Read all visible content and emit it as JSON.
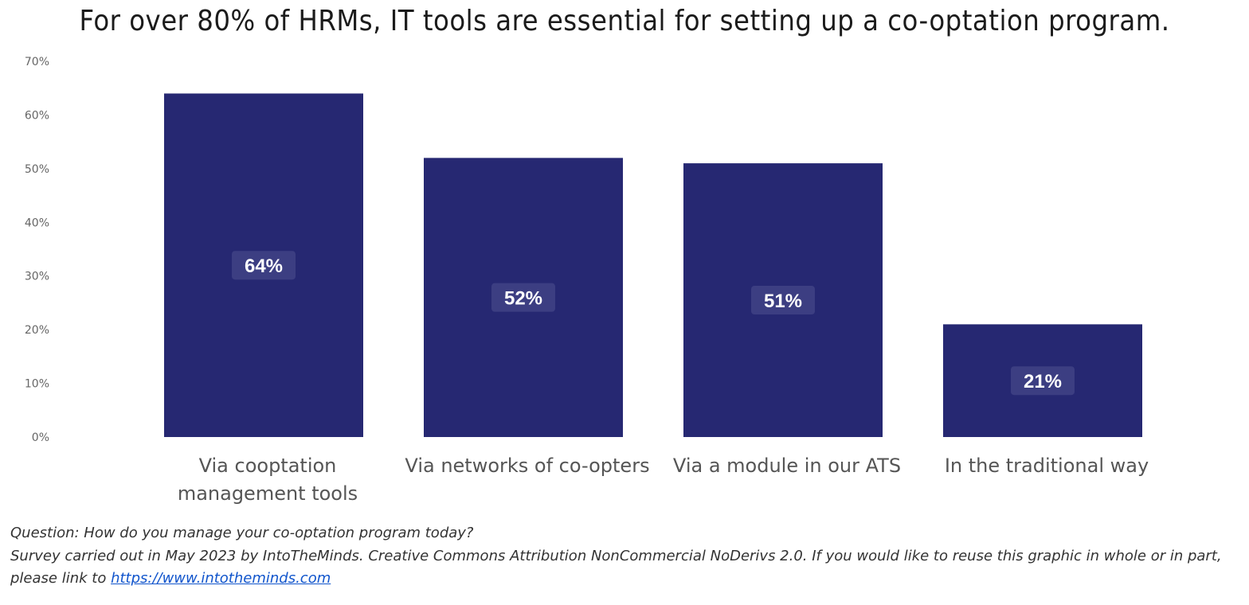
{
  "chart_data": {
    "type": "bar",
    "title": "For over 80% of HRMs, IT tools are essential for setting up a co-optation program.",
    "categories": [
      [
        "Via cooptation",
        "management tools"
      ],
      [
        "Via networks of co-opters"
      ],
      [
        "Via a module in our ATS"
      ],
      [
        "In the traditional way"
      ]
    ],
    "values": [
      64,
      52,
      51,
      21
    ],
    "data_labels": [
      "64%",
      "52%",
      "51%",
      "21%"
    ],
    "ylim": [
      0,
      70
    ],
    "yticks": [
      "0%",
      "10%",
      "20%",
      "30%",
      "40%",
      "50%",
      "60%",
      "70%"
    ],
    "xlabel": "",
    "ylabel": "",
    "grid": false,
    "bar_color": "#262872",
    "label_box_color": "#3c3e82"
  },
  "notes": {
    "question": "Question: How do you manage your co-optation program today?",
    "survey": "Survey carried out in May 2023 by IntoTheMinds. Creative Commons Attribution NonCommercial NoDerivs 2.0. If you would like to reuse this graphic in whole or in part,",
    "link_prefix": "please link to ",
    "link_text": "https://www.intotheminds.com"
  }
}
